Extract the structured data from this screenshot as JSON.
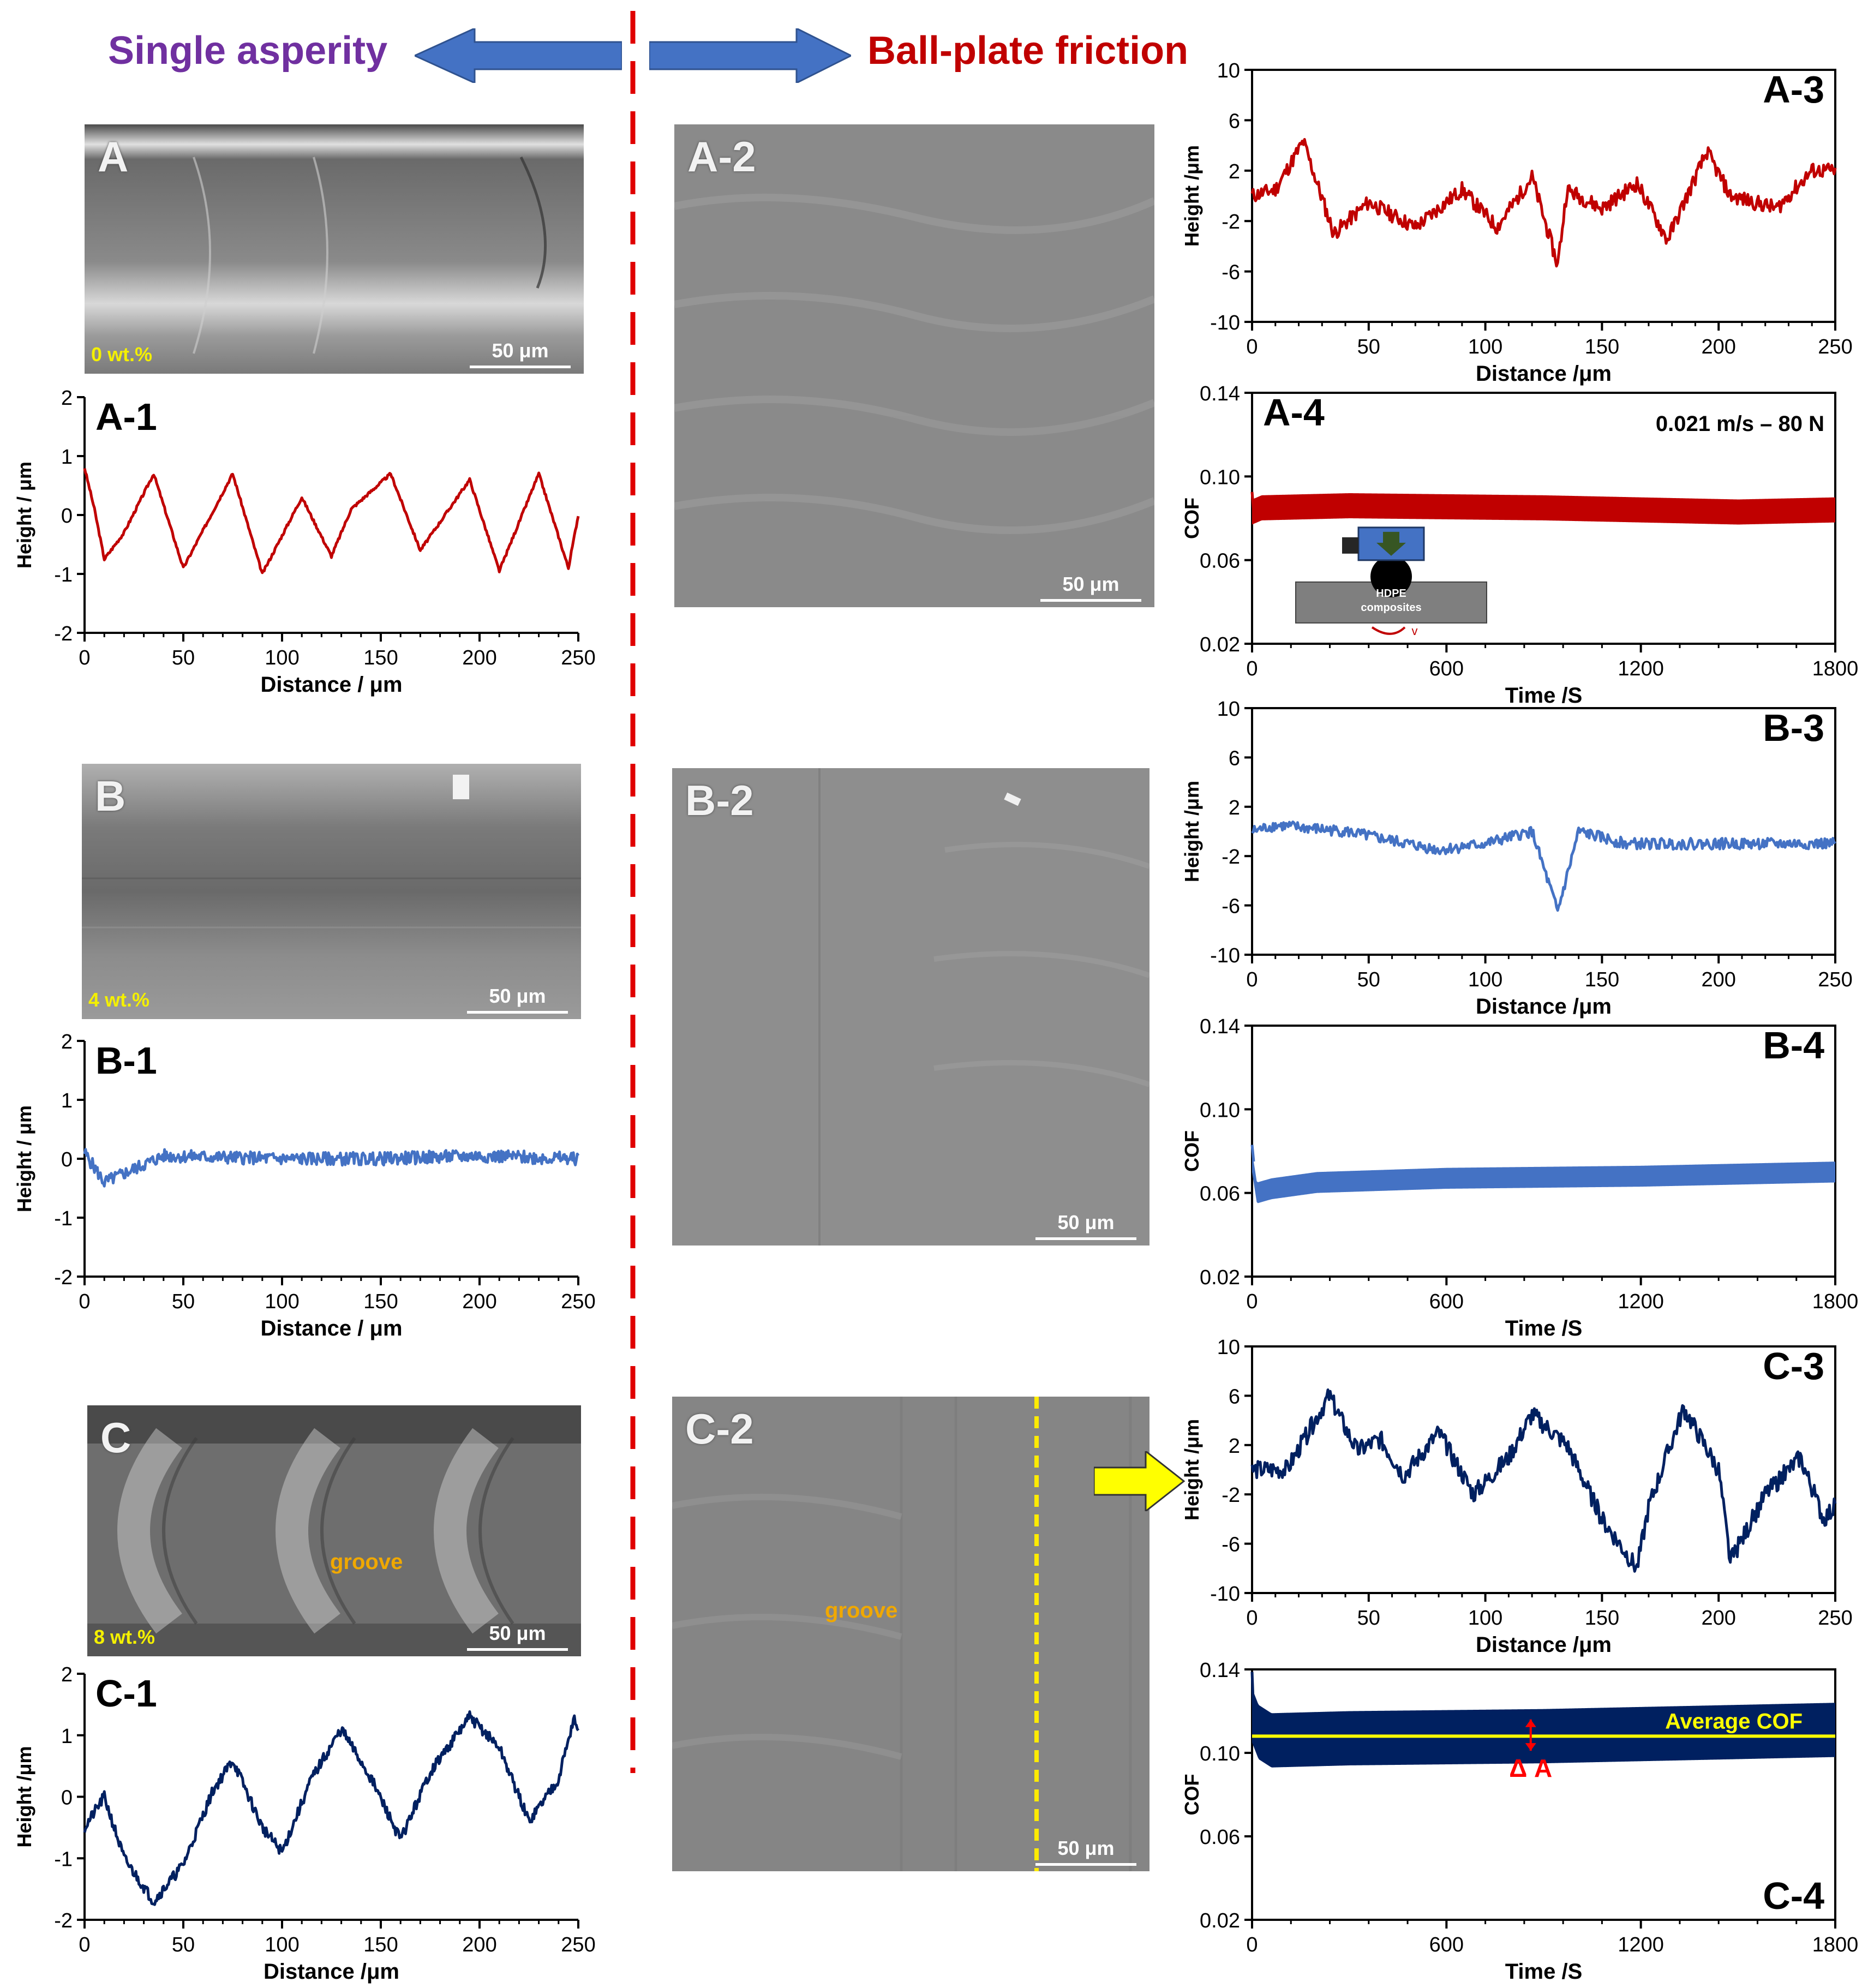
{
  "header": {
    "left_title": "Single asperity",
    "right_title": "Ball-plate friction",
    "left_color": "#7030a0",
    "right_color": "#c00000",
    "arrow_color": "#4472c4"
  },
  "sem_images": {
    "A": {
      "label": "A",
      "wt": "0 wt.%",
      "scale": "50 μm"
    },
    "A2": {
      "label": "A-2",
      "scale": "50 μm"
    },
    "B": {
      "label": "B",
      "wt": "4 wt.%",
      "scale": "50 μm"
    },
    "B2": {
      "label": "B-2",
      "scale": "50 μm"
    },
    "C": {
      "label": "C",
      "wt": "8 wt.%",
      "scale": "50 μm",
      "groove": "groove"
    },
    "C2": {
      "label": "C-2",
      "scale": "50 μm",
      "groove": "groove"
    }
  },
  "chart_data": [
    {
      "id": "A-1",
      "type": "line",
      "title": "A-1",
      "xlabel": "Distance / μm",
      "ylabel": "Height / μm",
      "xlim": [
        0,
        250
      ],
      "ylim": [
        -2,
        2
      ],
      "xticks": [
        0,
        50,
        100,
        150,
        200,
        250
      ],
      "yticks": [
        -2,
        -1,
        0,
        1,
        2
      ],
      "color": "#c00000",
      "generator": "sine",
      "period": 39,
      "amp": 0.8,
      "offset": -0.1,
      "noise": 0.05,
      "seed": 3,
      "x": [
        0,
        5,
        10,
        20,
        35,
        50,
        75,
        90,
        110,
        125,
        135,
        155,
        170,
        195,
        210,
        230,
        245,
        250
      ],
      "y": [
        0.8,
        0.1,
        -0.75,
        -0.3,
        0.7,
        -0.9,
        0.7,
        -1.0,
        0.3,
        -0.7,
        0.1,
        0.7,
        -0.6,
        0.6,
        -0.95,
        0.7,
        -0.9,
        0.0
      ]
    },
    {
      "id": "A-3",
      "type": "line",
      "title": "A-3",
      "xlabel": "Distance /μm",
      "ylabel": "Height /μm",
      "xlim": [
        0,
        250
      ],
      "ylim": [
        -10,
        10
      ],
      "xticks": [
        0,
        50,
        100,
        150,
        200,
        250
      ],
      "yticks": [
        -10,
        -6,
        -2,
        2,
        6,
        10
      ],
      "color": "#c00000",
      "generator": "noise",
      "noise": 1.2,
      "seed": 11,
      "x": [
        0,
        10,
        22,
        35,
        50,
        70,
        90,
        105,
        120,
        131,
        135,
        150,
        165,
        178,
        195,
        205,
        225,
        240,
        250
      ],
      "y": [
        0,
        0.5,
        4.3,
        -3,
        -0.5,
        -2.5,
        0.5,
        -2.5,
        1.5,
        -5.5,
        0.5,
        -1,
        1,
        -3.5,
        3.5,
        0,
        -1,
        2,
        2
      ]
    },
    {
      "id": "A-4",
      "type": "line",
      "title": "A-4",
      "annotation": "0.021 m/s – 80 N",
      "xlabel": "Time /S",
      "ylabel": "COF",
      "xlim": [
        0,
        1800
      ],
      "ylim": [
        0.02,
        0.14
      ],
      "xticks": [
        0,
        600,
        1200,
        1800
      ],
      "yticks": [
        0.02,
        0.06,
        0.1,
        0.14
      ],
      "color": "#c00000",
      "generator": "band",
      "band": 0.006,
      "x": [
        0,
        30,
        300,
        900,
        1500,
        1800
      ],
      "y": [
        0.083,
        0.085,
        0.086,
        0.085,
        0.083,
        0.084
      ],
      "inset": {
        "label1": "HDPE",
        "label2": "composites",
        "velocity": "v"
      }
    },
    {
      "id": "B-1",
      "type": "line",
      "title": "B-1",
      "xlabel": "Distance / μm",
      "ylabel": "Height / μm",
      "xlim": [
        0,
        250
      ],
      "ylim": [
        -2,
        2
      ],
      "xticks": [
        0,
        50,
        100,
        150,
        200,
        250
      ],
      "yticks": [
        -2,
        -1,
        0,
        1,
        2
      ],
      "color": "#4472c4",
      "generator": "noise",
      "noise": 0.22,
      "seed": 5,
      "x": [
        0,
        10,
        40,
        100,
        150,
        200,
        250
      ],
      "y": [
        0.1,
        -0.4,
        0.05,
        0.0,
        0.0,
        0.05,
        0.0
      ]
    },
    {
      "id": "B-3",
      "type": "line",
      "title": "B-3",
      "xlabel": "Distance /μm",
      "ylabel": "Height /μm",
      "xlim": [
        0,
        250
      ],
      "ylim": [
        -10,
        10
      ],
      "xticks": [
        0,
        50,
        100,
        150,
        200,
        250
      ],
      "yticks": [
        -10,
        -6,
        -2,
        2,
        6,
        10
      ],
      "color": "#4472c4",
      "generator": "noise",
      "noise": 0.9,
      "seed": 8,
      "x": [
        0,
        10,
        40,
        80,
        100,
        120,
        131,
        140,
        160,
        200,
        250
      ],
      "y": [
        0,
        0.5,
        0,
        -1.5,
        -1,
        0,
        -6.5,
        0,
        -1,
        -1,
        -1
      ]
    },
    {
      "id": "B-4",
      "type": "line",
      "title": "B-4",
      "xlabel": "Time /S",
      "ylabel": "COF",
      "xlim": [
        0,
        1800
      ],
      "ylim": [
        0.02,
        0.14
      ],
      "xticks": [
        0,
        600,
        1200,
        1800
      ],
      "yticks": [
        0.02,
        0.06,
        0.1,
        0.14
      ],
      "color": "#4472c4",
      "generator": "band",
      "band": 0.005,
      "x": [
        0,
        15,
        60,
        200,
        600,
        1200,
        1800
      ],
      "y": [
        0.075,
        0.06,
        0.062,
        0.065,
        0.067,
        0.068,
        0.07
      ]
    },
    {
      "id": "C-1",
      "type": "line",
      "title": "C-1",
      "xlabel": "Distance /μm",
      "ylabel": "Height /μm",
      "xlim": [
        0,
        250
      ],
      "ylim": [
        -2,
        2
      ],
      "xticks": [
        0,
        50,
        100,
        150,
        200,
        250
      ],
      "yticks": [
        -2,
        -1,
        0,
        1,
        2
      ],
      "color": "#002060",
      "generator": "noise",
      "noise": 0.18,
      "seed": 21,
      "x": [
        0,
        10,
        20,
        35,
        50,
        65,
        75,
        90,
        100,
        115,
        130,
        145,
        160,
        175,
        195,
        210,
        225,
        240,
        248,
        250
      ],
      "y": [
        -0.5,
        0,
        -1.0,
        -1.7,
        -1.1,
        0.1,
        0.6,
        -0.5,
        -0.9,
        0.3,
        1.1,
        0.3,
        -0.7,
        0.4,
        1.3,
        0.8,
        -0.4,
        0.3,
        1.3,
        1.0
      ]
    },
    {
      "id": "C-3",
      "type": "line",
      "title": "C-3",
      "xlabel": "Distance /μm",
      "ylabel": "Height /μm",
      "xlim": [
        0,
        250
      ],
      "ylim": [
        -10,
        10
      ],
      "xticks": [
        0,
        50,
        100,
        150,
        200,
        250
      ],
      "yticks": [
        -10,
        -6,
        -2,
        2,
        6,
        10
      ],
      "color": "#002060",
      "generator": "noise",
      "noise": 1.5,
      "seed": 14,
      "x": [
        0,
        15,
        33,
        45,
        55,
        65,
        80,
        95,
        110,
        120,
        135,
        150,
        165,
        170,
        185,
        200,
        205,
        220,
        235,
        245,
        250
      ],
      "y": [
        0,
        0,
        6,
        1.5,
        2.5,
        -0.5,
        3,
        -2,
        1,
        4.5,
        2,
        -4,
        -8,
        -3,
        5,
        0,
        -7.5,
        -2,
        1,
        -4,
        -3
      ]
    },
    {
      "id": "C-4",
      "type": "line",
      "title": "C-4",
      "xlabel": "Time /S",
      "ylabel": "COF",
      "xlim": [
        0,
        1800
      ],
      "ylim": [
        0.02,
        0.14
      ],
      "xticks": [
        0,
        600,
        1200,
        1800
      ],
      "yticks": [
        0.02,
        0.06,
        0.1,
        0.14
      ],
      "color": "#002060",
      "generator": "band",
      "band": 0.013,
      "x": [
        0,
        20,
        60,
        300,
        900,
        1500,
        1800
      ],
      "y": [
        0.118,
        0.11,
        0.106,
        0.107,
        0.108,
        0.11,
        0.111
      ],
      "average": {
        "value": 0.108,
        "label": "Average COF",
        "color": "#ffff00"
      },
      "delta": {
        "label": "Δ A",
        "x": 860,
        "y1": 0.101,
        "y2": 0.116
      }
    }
  ]
}
